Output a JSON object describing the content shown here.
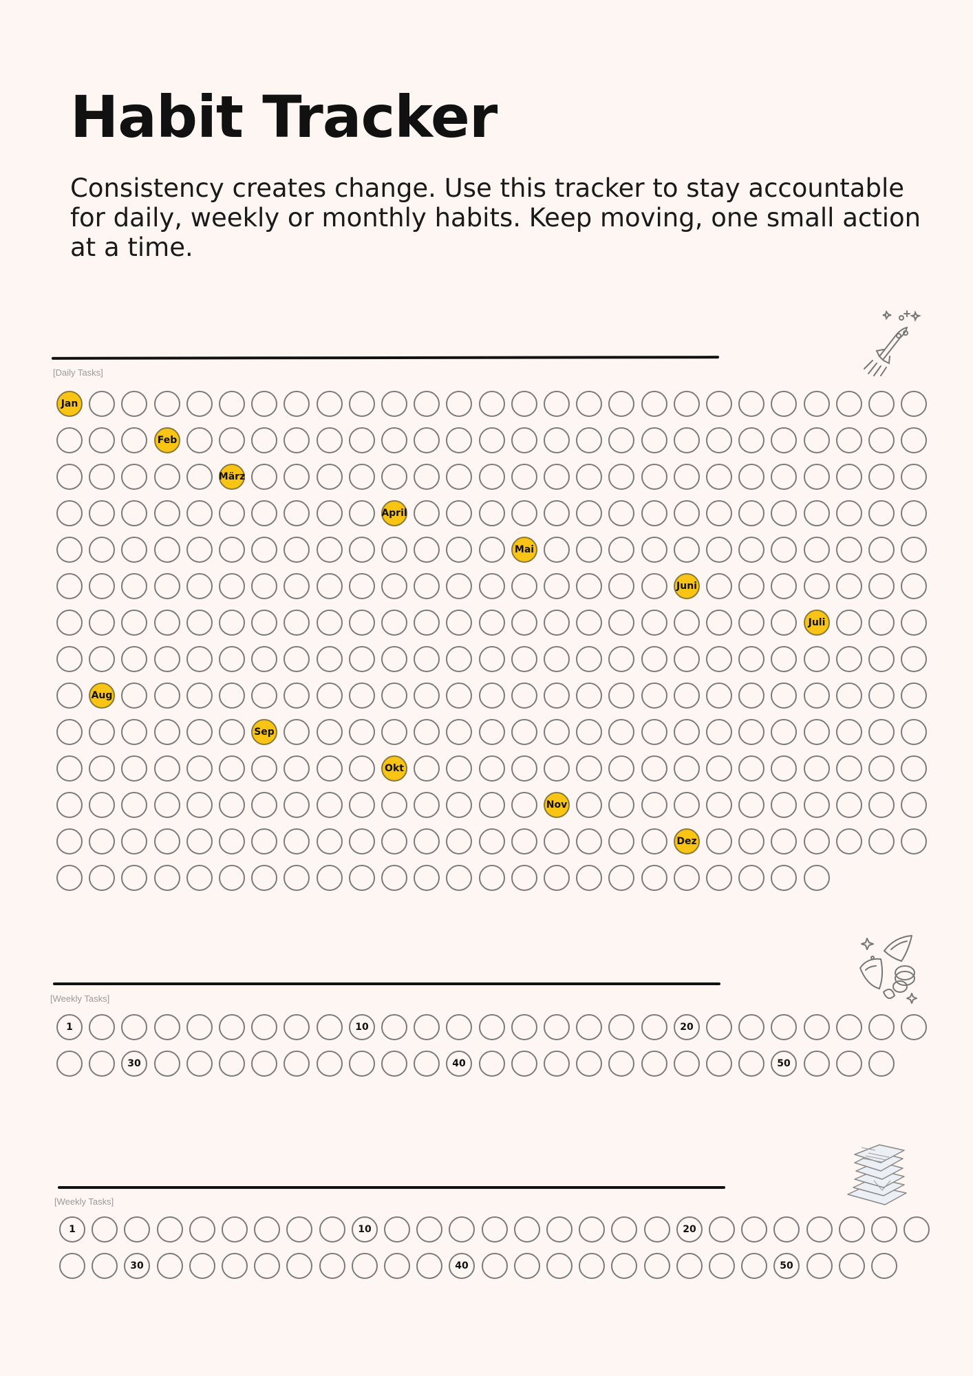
{
  "title": "Habit Tracker",
  "subtitle": "Consistency creates change. Use this tracker to stay accountable for daily, weekly or monthly habits. Keep moving, one small action at a time.",
  "daily": {
    "label": "[Daily Tasks]",
    "rows": 14,
    "cols": 27,
    "last_row_count": 24,
    "months": [
      {
        "row": 0,
        "col": 0,
        "label": "Jan"
      },
      {
        "row": 1,
        "col": 3,
        "label": "Feb"
      },
      {
        "row": 2,
        "col": 5,
        "label": "März"
      },
      {
        "row": 3,
        "col": 10,
        "label": "April"
      },
      {
        "row": 4,
        "col": 14,
        "label": "Mai"
      },
      {
        "row": 5,
        "col": 19,
        "label": "Juni"
      },
      {
        "row": 6,
        "col": 23,
        "label": "Juli"
      },
      {
        "row": 8,
        "col": 1,
        "label": "Aug"
      },
      {
        "row": 9,
        "col": 6,
        "label": "Sep"
      },
      {
        "row": 10,
        "col": 10,
        "label": "Okt"
      },
      {
        "row": 11,
        "col": 15,
        "label": "Nov"
      },
      {
        "row": 12,
        "col": 19,
        "label": "Dez"
      }
    ]
  },
  "weekly1": {
    "label": "[Weekly Tasks]",
    "row_counts": [
      27,
      26
    ],
    "numbers": [
      {
        "index": 0,
        "label": "1"
      },
      {
        "index": 9,
        "label": "10"
      },
      {
        "index": 19,
        "label": "20"
      },
      {
        "index": 29,
        "label": "30"
      },
      {
        "index": 39,
        "label": "40"
      },
      {
        "index": 49,
        "label": "50"
      }
    ]
  },
  "weekly2": {
    "label": "[Weekly Tasks]",
    "row_counts": [
      27,
      26
    ],
    "numbers": [
      {
        "index": 0,
        "label": "1"
      },
      {
        "index": 9,
        "label": "10"
      },
      {
        "index": 19,
        "label": "20"
      },
      {
        "index": 29,
        "label": "30"
      },
      {
        "index": 39,
        "label": "40"
      },
      {
        "index": 49,
        "label": "50"
      }
    ]
  },
  "icons": [
    "rocket-icon",
    "money-icon",
    "papers-icon"
  ],
  "colors": {
    "highlight": "#f9c413",
    "background": "#fdf6f3",
    "circle": "#7b7b7b"
  }
}
